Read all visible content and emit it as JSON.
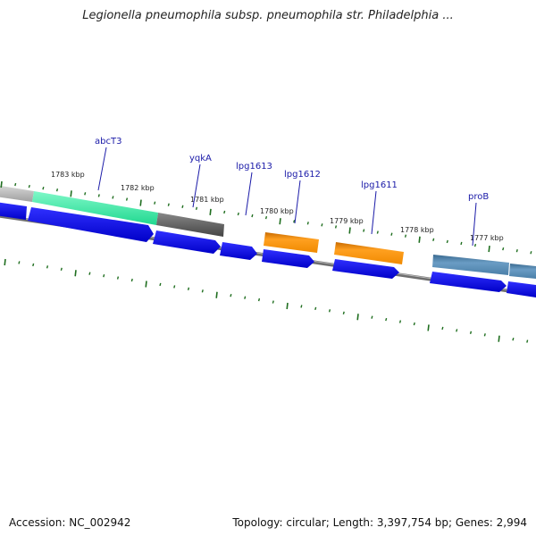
{
  "title": "Legionella pneumophila subsp. pneumophila str. Philadelphia ...",
  "footer": {
    "accession": "Accession: NC_002942",
    "summary": "Topology: circular; Length: 3,397,754 bp; Genes: 2,994"
  },
  "ticks": [
    "1783 kbp",
    "1782 kbp",
    "1781 kbp",
    "1780 kbp",
    "1779 kbp",
    "1778 kbp",
    "1777 kbp"
  ],
  "genes": [
    {
      "name": "abcT3",
      "color": "#3cf0a8"
    },
    {
      "name": "yqkA",
      "color": "#555555"
    },
    {
      "name": "lpg1613",
      "color": "#0000ee"
    },
    {
      "name": "lpg1612",
      "color": "#f08a00"
    },
    {
      "name": "lpg1611",
      "color": "#f08a00"
    },
    {
      "name": "proB",
      "color": "#4a7fa8"
    }
  ],
  "colors": {
    "cds": "#0000ee",
    "backbone": "#7a7a7a",
    "tick": "#1f6e1f",
    "label_line": "#1a1aa8"
  }
}
